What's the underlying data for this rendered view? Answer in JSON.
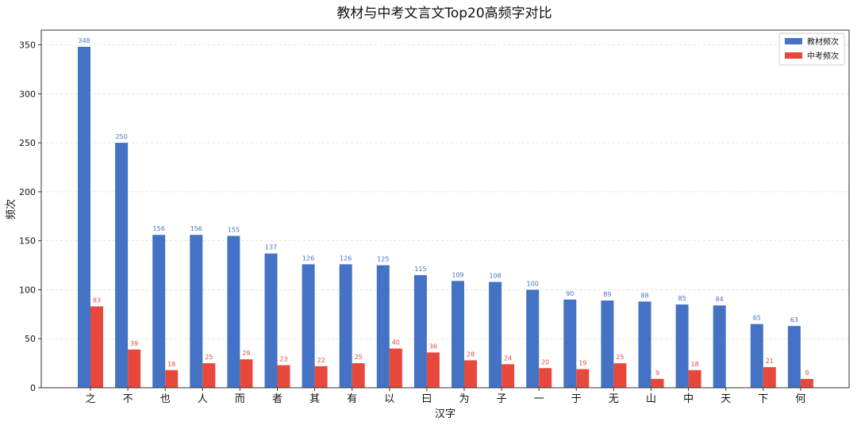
{
  "chart_data": {
    "type": "bar",
    "title": "教材与中考文言文Top20高频字对比",
    "xlabel": "汉字",
    "ylabel": "频次",
    "ylim": [
      0,
      365
    ],
    "yticks": [
      0,
      50,
      100,
      150,
      200,
      250,
      300,
      350
    ],
    "grid": true,
    "legend_position": "top-right",
    "categories": [
      "之",
      "不",
      "也",
      "人",
      "而",
      "者",
      "其",
      "有",
      "以",
      "曰",
      "为",
      "子",
      "一",
      "于",
      "无",
      "山",
      "中",
      "天",
      "下",
      "何"
    ],
    "series": [
      {
        "name": "教材频次",
        "color": "#4472c4",
        "values": [
          348,
          250,
          156,
          156,
          155,
          137,
          126,
          126,
          125,
          115,
          109,
          108,
          100,
          90,
          89,
          88,
          85,
          84,
          65,
          63
        ]
      },
      {
        "name": "中考频次",
        "color": "#e8483b",
        "values": [
          83,
          39,
          18,
          25,
          29,
          23,
          22,
          25,
          40,
          36,
          28,
          24,
          20,
          19,
          25,
          9,
          18,
          0,
          21,
          9
        ]
      }
    ]
  }
}
